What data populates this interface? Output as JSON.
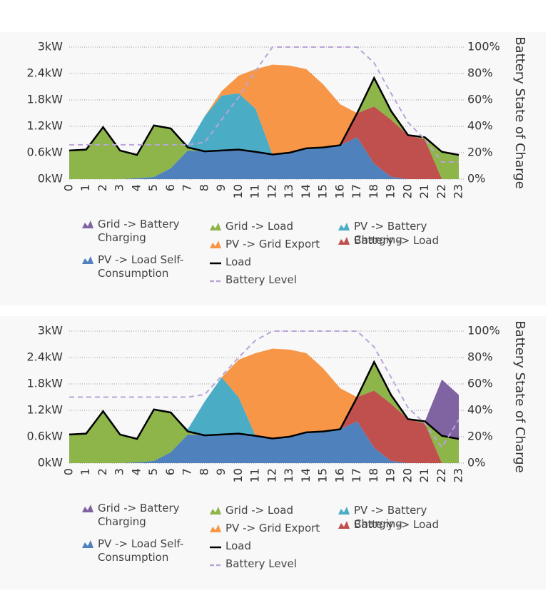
{
  "chart_data": [
    {
      "type": "area",
      "stacked": true,
      "grid": true,
      "y2label": "Battery State of Charge",
      "categories": [
        "0",
        "1",
        "2",
        "3",
        "4",
        "5",
        "6",
        "7",
        "8",
        "9",
        "10",
        "11",
        "12",
        "13",
        "14",
        "15",
        "16",
        "17",
        "18",
        "19",
        "20",
        "21",
        "22",
        "23"
      ],
      "ylim": [
        0,
        3
      ],
      "yticks": [
        {
          "value": 0,
          "label": "0kW"
        },
        {
          "value": 0.6,
          "label": "0.6kW"
        },
        {
          "value": 1.2,
          "label": "1.2kW"
        },
        {
          "value": 1.8,
          "label": "1.8kW"
        },
        {
          "value": 2.4,
          "label": "2.4kW"
        },
        {
          "value": 3,
          "label": "3kW"
        }
      ],
      "y2lim": [
        0,
        100
      ],
      "y2ticks": [
        {
          "value": 0,
          "label": "0%"
        },
        {
          "value": 20,
          "label": "20%"
        },
        {
          "value": 40,
          "label": "40%"
        },
        {
          "value": 60,
          "label": "60%"
        },
        {
          "value": 80,
          "label": "80%"
        },
        {
          "value": 100,
          "label": "100%"
        }
      ],
      "series": [
        {
          "name": "PV -> Load Self-Consumption",
          "kind": "area",
          "color": "#4f81bd",
          "values": [
            0,
            0,
            0,
            0,
            0.02,
            0.05,
            0.25,
            0.65,
            0.63,
            0.65,
            0.67,
            0.62,
            0.56,
            0.6,
            0.7,
            0.72,
            0.77,
            0.95,
            0.35,
            0.05,
            0,
            0,
            0,
            0
          ]
        },
        {
          "name": "Battery -> Load",
          "kind": "area",
          "color": "#c0504d",
          "values": [
            0,
            0,
            0,
            0,
            0,
            0,
            0,
            0,
            0,
            0,
            0,
            0,
            0,
            0,
            0,
            0,
            0,
            0.55,
            1.3,
            1.3,
            1.0,
            0.9,
            0,
            0
          ]
        },
        {
          "name": "Grid -> Load",
          "kind": "area",
          "color": "#8db54a",
          "values": [
            0.65,
            0.67,
            1.18,
            0.65,
            0.53,
            1.17,
            0.9,
            0.07,
            0,
            0,
            0,
            0,
            0,
            0,
            0,
            0,
            0,
            0,
            0.65,
            0.2,
            0,
            0.05,
            0.62,
            0.55
          ]
        },
        {
          "name": "PV -> Battery Charging",
          "kind": "area",
          "color": "#4bacc6",
          "values": [
            0,
            0,
            0,
            0,
            0,
            0,
            0,
            0.05,
            0.8,
            1.25,
            1.28,
            0.98,
            0,
            0,
            0,
            0,
            0,
            0,
            0,
            0,
            0,
            0,
            0,
            0
          ]
        },
        {
          "name": "PV -> Grid Export",
          "kind": "area",
          "color": "#f79646",
          "values": [
            0,
            0,
            0,
            0,
            0,
            0,
            0,
            0,
            0,
            0.1,
            0.4,
            0.9,
            2.04,
            1.98,
            1.8,
            1.43,
            0.93,
            0,
            0,
            0,
            0,
            0,
            0,
            0
          ]
        },
        {
          "name": "Grid -> Battery Charging",
          "kind": "area",
          "color": "#8064a2",
          "values": [
            0,
            0,
            0,
            0,
            0,
            0,
            0,
            0,
            0,
            0,
            0,
            0,
            0,
            0,
            0,
            0,
            0,
            0,
            0,
            0,
            0,
            0,
            0,
            0
          ]
        },
        {
          "name": "Load",
          "kind": "line",
          "color": "#000000",
          "values": [
            0.65,
            0.67,
            1.18,
            0.65,
            0.55,
            1.22,
            1.15,
            0.72,
            0.63,
            0.65,
            0.67,
            0.62,
            0.56,
            0.6,
            0.7,
            0.72,
            0.77,
            1.5,
            2.3,
            1.55,
            1.0,
            0.95,
            0.62,
            0.55
          ]
        },
        {
          "name": "Battery Level",
          "kind": "line",
          "dashed": true,
          "axis": "y2",
          "color": "#b9a4d9",
          "values": [
            26,
            26,
            26,
            26,
            26,
            26,
            26,
            26,
            28,
            45,
            62,
            82,
            100,
            100,
            100,
            100,
            100,
            100,
            88,
            65,
            43,
            30,
            13,
            13
          ]
        }
      ]
    },
    {
      "type": "area",
      "stacked": true,
      "grid": true,
      "y2label": "Battery State of Charge",
      "categories": [
        "0",
        "1",
        "2",
        "3",
        "4",
        "5",
        "6",
        "7",
        "8",
        "9",
        "10",
        "11",
        "12",
        "13",
        "14",
        "15",
        "16",
        "17",
        "18",
        "19",
        "20",
        "21",
        "22",
        "23"
      ],
      "ylim": [
        0,
        3
      ],
      "yticks": [
        {
          "value": 0,
          "label": "0kW"
        },
        {
          "value": 0.6,
          "label": "0.6kW"
        },
        {
          "value": 1.2,
          "label": "1.2kW"
        },
        {
          "value": 1.8,
          "label": "1.8kW"
        },
        {
          "value": 2.4,
          "label": "2.4kW"
        },
        {
          "value": 3,
          "label": "3kW"
        }
      ],
      "y2lim": [
        0,
        100
      ],
      "y2ticks": [
        {
          "value": 0,
          "label": "0%"
        },
        {
          "value": 20,
          "label": "20%"
        },
        {
          "value": 40,
          "label": "40%"
        },
        {
          "value": 60,
          "label": "60%"
        },
        {
          "value": 80,
          "label": "80%"
        },
        {
          "value": 100,
          "label": "100%"
        }
      ],
      "series": [
        {
          "name": "PV -> Load Self-Consumption",
          "kind": "area",
          "color": "#4f81bd",
          "values": [
            0,
            0,
            0,
            0,
            0.02,
            0.05,
            0.25,
            0.65,
            0.63,
            0.65,
            0.67,
            0.62,
            0.56,
            0.6,
            0.7,
            0.72,
            0.77,
            0.95,
            0.35,
            0.05,
            0,
            0,
            0,
            0
          ]
        },
        {
          "name": "Battery -> Load",
          "kind": "area",
          "color": "#c0504d",
          "values": [
            0,
            0,
            0,
            0,
            0,
            0,
            0,
            0,
            0,
            0,
            0,
            0,
            0,
            0,
            0,
            0,
            0,
            0.55,
            1.3,
            1.3,
            1.0,
            0.9,
            0,
            0
          ]
        },
        {
          "name": "Grid -> Load",
          "kind": "area",
          "color": "#8db54a",
          "values": [
            0.65,
            0.67,
            1.18,
            0.65,
            0.53,
            1.17,
            0.9,
            0.07,
            0,
            0,
            0,
            0,
            0,
            0,
            0,
            0,
            0,
            0,
            0.65,
            0.2,
            0,
            0.05,
            0.62,
            0.55
          ]
        },
        {
          "name": "PV -> Battery Charging",
          "kind": "area",
          "color": "#4bacc6",
          "values": [
            0,
            0,
            0,
            0,
            0,
            0,
            0,
            0.05,
            0.77,
            1.3,
            0.83,
            0,
            0,
            0,
            0,
            0,
            0,
            0,
            0,
            0,
            0,
            0,
            0,
            0
          ]
        },
        {
          "name": "PV -> Grid Export",
          "kind": "area",
          "color": "#f79646",
          "values": [
            0,
            0,
            0,
            0,
            0,
            0,
            0,
            0,
            0,
            0,
            0.85,
            1.88,
            2.04,
            1.98,
            1.8,
            1.43,
            0.93,
            0,
            0,
            0,
            0,
            0,
            0,
            0
          ]
        },
        {
          "name": "Grid -> Battery Charging",
          "kind": "area",
          "color": "#8064a2",
          "values": [
            0,
            0,
            0,
            0,
            0,
            0,
            0,
            0,
            0,
            0,
            0,
            0,
            0,
            0,
            0,
            0,
            0,
            0,
            0,
            0,
            0,
            0,
            1.28,
            1.0
          ]
        },
        {
          "name": "Load",
          "kind": "line",
          "color": "#000000",
          "values": [
            0.65,
            0.67,
            1.18,
            0.65,
            0.55,
            1.22,
            1.15,
            0.72,
            0.63,
            0.65,
            0.67,
            0.62,
            0.56,
            0.6,
            0.7,
            0.72,
            0.77,
            1.5,
            2.3,
            1.55,
            1.0,
            0.95,
            0.62,
            0.55
          ]
        },
        {
          "name": "Battery Level",
          "kind": "line",
          "dashed": true,
          "axis": "y2",
          "color": "#b9a4d9",
          "values": [
            50,
            50,
            50,
            50,
            50,
            50,
            50,
            50,
            52,
            66,
            80,
            93,
            100,
            100,
            100,
            100,
            100,
            100,
            88,
            65,
            42,
            30,
            12,
            33
          ]
        }
      ]
    }
  ]
}
